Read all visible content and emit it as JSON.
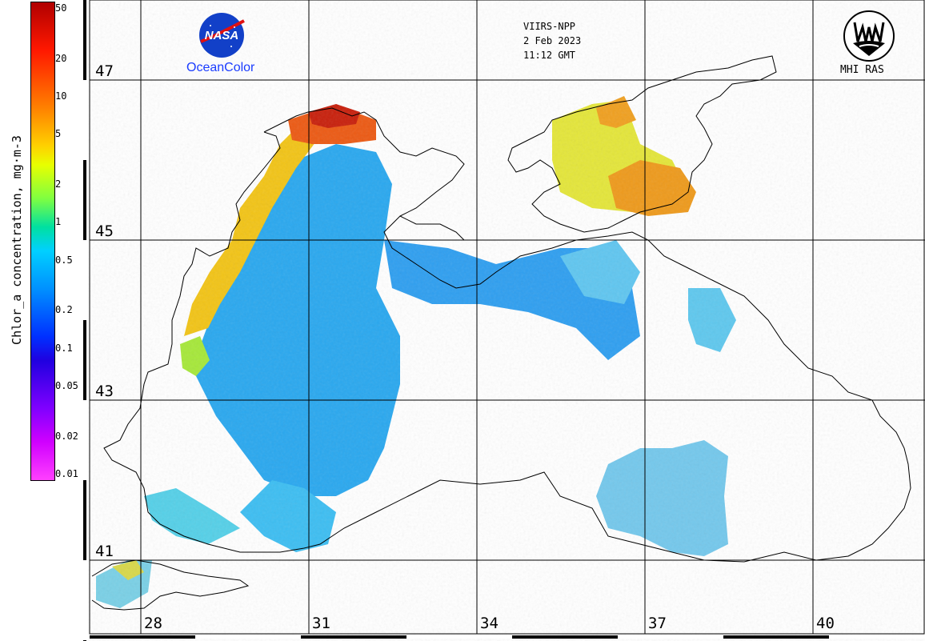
{
  "colorbar": {
    "title": "Chlor_a concentration, mg·m-3",
    "ticks": [
      {
        "label": "50",
        "value": 50
      },
      {
        "label": "20",
        "value": 20
      },
      {
        "label": "10",
        "value": 10
      },
      {
        "label": "5",
        "value": 5
      },
      {
        "label": "2",
        "value": 2
      },
      {
        "label": "1",
        "value": 1
      },
      {
        "label": "0.5",
        "value": 0.5
      },
      {
        "label": "0.2",
        "value": 0.2
      },
      {
        "label": "0.1",
        "value": 0.1
      },
      {
        "label": "0.05",
        "value": 0.05
      },
      {
        "label": "0.02",
        "value": 0.02
      },
      {
        "label": "0.01",
        "value": 0.01
      }
    ]
  },
  "map": {
    "latitudes": [
      "47",
      "45",
      "43",
      "41"
    ],
    "longitudes": [
      "28",
      "31",
      "34",
      "37",
      "40"
    ]
  },
  "satellite": {
    "sensor": "VIIRS-NPP",
    "date": "2 Feb 2023",
    "time": "11:12 GMT"
  },
  "logos": {
    "nasa_mark": "NASA",
    "nasa_caption": "OceanColor",
    "mhi_caption": "MHI RAS"
  }
}
